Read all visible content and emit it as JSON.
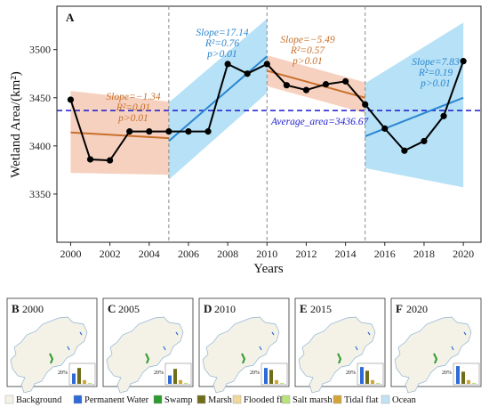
{
  "chart_data": {
    "type": "line",
    "panel_label": "A",
    "xlabel": "Years",
    "ylabel": "Wetland Area/(km²)",
    "xlim": [
      1999.3,
      2020.9
    ],
    "ylim": [
      3300,
      3545
    ],
    "xticks": [
      2000,
      2002,
      2004,
      2006,
      2008,
      2010,
      2012,
      2014,
      2016,
      2018,
      2020
    ],
    "yticks": [
      3350,
      3400,
      3450,
      3500
    ],
    "grid": false,
    "series": [
      {
        "x": [
          2000,
          2001,
          2002,
          2003,
          2004,
          2005,
          2006,
          2007,
          2008,
          2009,
          2010,
          2011,
          2012,
          2013,
          2014,
          2015,
          2016,
          2017,
          2018,
          2019,
          2020
        ],
        "values": [
          3448,
          3386,
          3385,
          3415,
          3415,
          3415,
          3415,
          3415,
          3485,
          3475,
          3485,
          3463,
          3458,
          3464,
          3467,
          3443,
          3418,
          3395,
          3405,
          3431,
          3488
        ]
      }
    ],
    "average_line": {
      "value": 3436.67,
      "label": "Average_area=3436.67",
      "color": "#1a1acd"
    },
    "period_dividers": [
      2005,
      2010,
      2015
    ],
    "trends": [
      {
        "period": [
          2000,
          2005
        ],
        "start": 3414,
        "end": 3408,
        "ci_low_start": 3372,
        "ci_high_start": 3457,
        "ci_low_end": 3370,
        "ci_high_end": 3446,
        "color": "#c8702a",
        "band_color": "#f6c9b4",
        "slope": "Slope=−1.34",
        "r2": "R²=0.01",
        "p": "p>0.01"
      },
      {
        "period": [
          2005,
          2010
        ],
        "start": 3405,
        "end": 3493,
        "ci_low_start": 3365,
        "ci_high_start": 3445,
        "ci_low_end": 3455,
        "ci_high_end": 3532,
        "color": "#2a86d0",
        "band_color": "#a9dcf5",
        "slope": "Slope=17.14",
        "r2": "R²=0.76",
        "p": "p>0.01"
      },
      {
        "period": [
          2010,
          2015
        ],
        "start": 3478,
        "end": 3450,
        "ci_low_start": 3462,
        "ci_high_start": 3494,
        "ci_low_end": 3434,
        "ci_high_end": 3466,
        "color": "#c8702a",
        "band_color": "#f6c9b4",
        "slope": "Slope=−5.49",
        "r2": "R²=0.57",
        "p": "p>0.01"
      },
      {
        "period": [
          2015,
          2020
        ],
        "start": 3410,
        "end": 3450,
        "ci_low_start": 3377,
        "ci_high_start": 3465,
        "ci_low_end": 3357,
        "ci_high_end": 3528,
        "color": "#2a86d0",
        "band_color": "#a9dcf5",
        "slope": "Slope=7.83",
        "r2": "R²=0.19",
        "p": "p>0.01"
      }
    ],
    "map_panels": [
      {
        "letter": "B",
        "year": "2000",
        "bars": [
          0.55,
          0.85,
          0.2,
          0.05
        ]
      },
      {
        "letter": "C",
        "year": "2005",
        "bars": [
          0.45,
          0.8,
          0.2,
          0.05
        ]
      },
      {
        "letter": "D",
        "year": "2010",
        "bars": [
          0.85,
          0.75,
          0.2,
          0.05
        ]
      },
      {
        "letter": "E",
        "year": "2015",
        "bars": [
          0.9,
          0.7,
          0.2,
          0.05
        ]
      },
      {
        "letter": "F",
        "year": "2020",
        "bars": [
          0.95,
          0.65,
          0.2,
          0.05
        ]
      }
    ],
    "map_bar_label": "20%",
    "legend": [
      {
        "label": "Background",
        "color": "#f4f2e6"
      },
      {
        "label": "Permanent Water",
        "color": "#2f6bd6"
      },
      {
        "label": "Swamp",
        "color": "#2e9b2e"
      },
      {
        "label": "Marsh",
        "color": "#6e6e1a"
      },
      {
        "label": "Flooded flat",
        "color": "#f1d79a"
      },
      {
        "label": "Salt marsh",
        "color": "#b8e27a"
      },
      {
        "label": "Tidal flat",
        "color": "#d3a43a"
      },
      {
        "label": "Ocean",
        "color": "#bfe3f2"
      }
    ]
  }
}
